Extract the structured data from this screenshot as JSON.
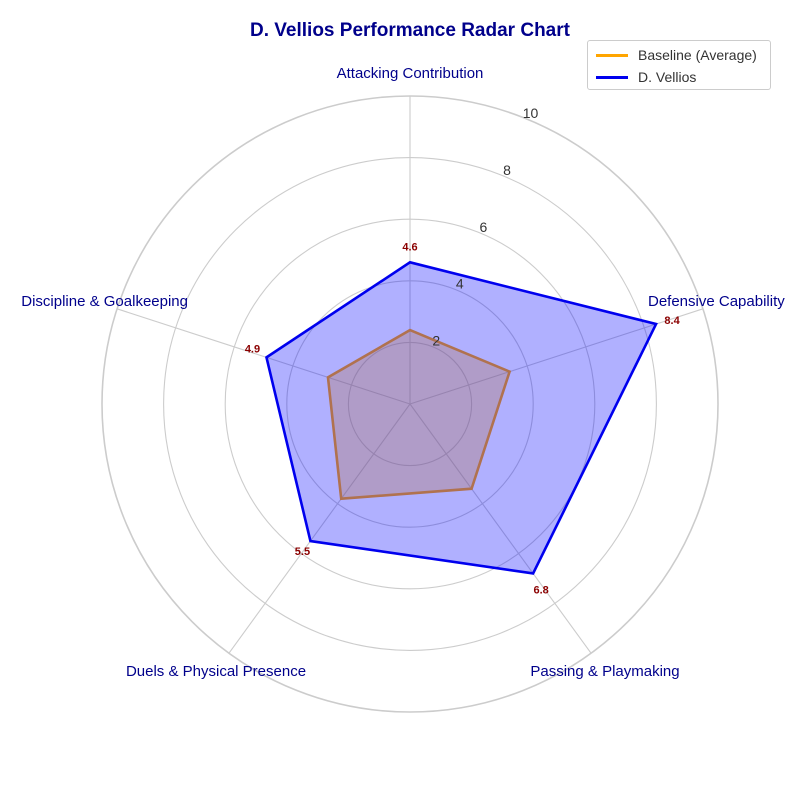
{
  "chart_data": {
    "type": "radar",
    "title": "D. Vellios Performance Radar Chart",
    "categories": [
      "Attacking Contribution",
      "Defensive Capability",
      "Passing & Playmaking",
      "Duels & Physical Presence",
      "Discipline & Goalkeeping"
    ],
    "rlim": [
      0,
      10
    ],
    "rticks": [
      2,
      4,
      6,
      8,
      10
    ],
    "grid": true,
    "legend_position": "top-right",
    "series": [
      {
        "name": "Baseline (Average)",
        "values": [
          2.4,
          3.4,
          3.4,
          3.8,
          2.8
        ],
        "color": "#ffa500",
        "fill": "#ffa500"
      },
      {
        "name": "D. Vellios",
        "values": [
          4.6,
          8.4,
          6.8,
          5.5,
          4.9
        ],
        "color": "#0000ee",
        "fill": "#0000ff",
        "data_labels": [
          "4.6",
          "8.4",
          "6.8",
          "5.5",
          "4.9"
        ]
      }
    ]
  }
}
